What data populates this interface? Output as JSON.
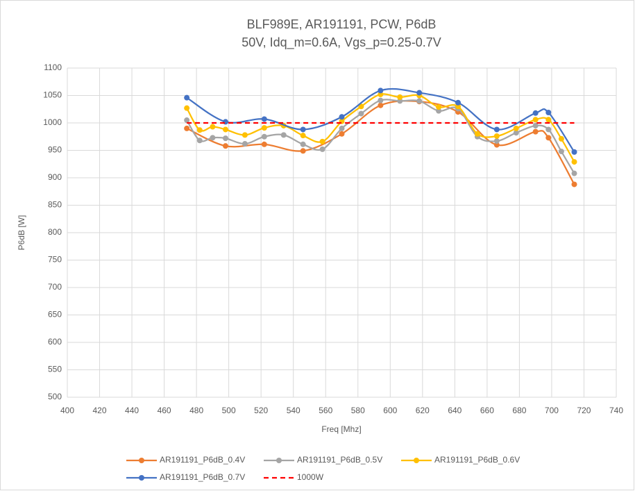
{
  "chart_data": {
    "type": "line",
    "title": [
      "BLF989E, AR191191, PCW, P6dB",
      "50V, Idq_m=0.6A, Vgs_p=0.25-0.7V"
    ],
    "xlabel": "Freq [Mhz]",
    "ylabel": "P6dB [W]",
    "xlim": [
      400,
      740
    ],
    "xticks": [
      400,
      420,
      440,
      460,
      480,
      500,
      520,
      540,
      560,
      580,
      600,
      620,
      640,
      660,
      680,
      700,
      720,
      740
    ],
    "ylim": [
      500,
      1100
    ],
    "yticks": [
      500,
      550,
      600,
      650,
      700,
      750,
      800,
      850,
      900,
      950,
      1000,
      1050,
      1100
    ],
    "grid": true,
    "legend": "bottom",
    "series": [
      {
        "name": "AR191191_P6dB_0.4V",
        "color": "#ed7d31",
        "markers": true,
        "dashed": false,
        "x": [
          474,
          498,
          522,
          546,
          570,
          594,
          618,
          642,
          666,
          690,
          698,
          714
        ],
        "values": [
          990,
          958,
          961,
          949,
          980,
          1032,
          1039,
          1020,
          960,
          984,
          973,
          888
        ]
      },
      {
        "name": "AR191191_P6dB_0.5V",
        "color": "#a5a5a5",
        "markers": true,
        "dashed": false,
        "x": [
          474,
          482,
          490,
          498,
          510,
          522,
          534,
          546,
          558,
          570,
          582,
          594,
          606,
          618,
          630,
          642,
          654,
          666,
          678,
          690,
          698,
          706,
          714
        ],
        "values": [
          1005,
          968,
          973,
          972,
          962,
          975,
          978,
          961,
          952,
          990,
          1017,
          1041,
          1040,
          1040,
          1022,
          1026,
          975,
          967,
          982,
          995,
          988,
          948,
          908
        ]
      },
      {
        "name": "AR191191_P6dB_0.6V",
        "color": "#ffc000",
        "markers": true,
        "dashed": false,
        "x": [
          474,
          482,
          490,
          498,
          510,
          522,
          534,
          546,
          558,
          570,
          582,
          594,
          606,
          618,
          630,
          642,
          654,
          666,
          678,
          690,
          698,
          706,
          714
        ],
        "values": [
          1027,
          987,
          993,
          988,
          978,
          991,
          995,
          977,
          966,
          1003,
          1030,
          1052,
          1047,
          1050,
          1029,
          1030,
          980,
          976,
          990,
          1006,
          1006,
          971,
          929
        ]
      },
      {
        "name": "AR191191_P6dB_0.7V",
        "color": "#4472c4",
        "markers": true,
        "dashed": false,
        "x": [
          474,
          498,
          522,
          546,
          570,
          594,
          618,
          642,
          666,
          690,
          698,
          714
        ],
        "values": [
          1046,
          1002,
          1007,
          988,
          1011,
          1059,
          1055,
          1037,
          988,
          1018,
          1019,
          947
        ]
      },
      {
        "name": "1000W",
        "color": "#ff0000",
        "markers": false,
        "dashed": true,
        "x": [
          474,
          714
        ],
        "values": [
          1000,
          1000
        ]
      }
    ]
  }
}
